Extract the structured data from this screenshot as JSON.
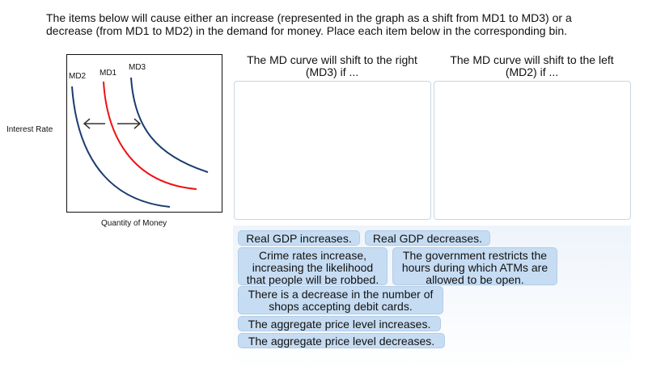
{
  "instructions": "The items below will cause either an increase (represented in the graph as a shift from MD1 to MD3) or a decrease (from MD1 to MD2) in the demand for money. Place each item below in the corresponding bin.",
  "graph": {
    "y_label": "Interest Rate",
    "x_label": "Quantity of Money",
    "curves": [
      {
        "label": "MD2",
        "color": "#1a3c6e"
      },
      {
        "label": "MD1",
        "color": "#ee1111"
      },
      {
        "label": "MD3",
        "color": "#1a3c6e"
      }
    ]
  },
  "bins": [
    {
      "heading": "The MD curve will shift to the right (MD3) if ..."
    },
    {
      "heading": "The MD curve will shift to the left (MD2) if ..."
    }
  ],
  "items": [
    "Real GDP increases.",
    "Real GDP decreases.",
    "Crime rates increase, increasing the likelihood that people will be robbed.",
    "The government restricts the hours during which ATMs are allowed to be open.",
    "There is a decrease in the number of shops accepting debit cards.",
    "The aggregate price level increases.",
    "The aggregate price level decreases."
  ]
}
